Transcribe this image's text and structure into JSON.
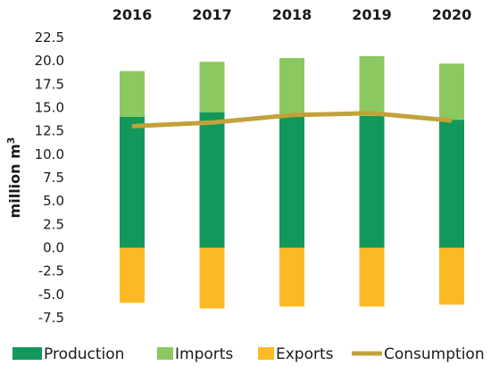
{
  "chart_data": {
    "type": "bar",
    "categories": [
      "2016",
      "2017",
      "2018",
      "2019",
      "2020"
    ],
    "series": [
      {
        "name": "Production",
        "kind": "bar",
        "stack": "positive",
        "color": "#12985a",
        "values": [
          14.0,
          14.5,
          14.2,
          14.1,
          13.7
        ]
      },
      {
        "name": "Imports",
        "kind": "bar",
        "stack": "positive",
        "color": "#8cc860",
        "values": [
          4.9,
          5.4,
          6.1,
          6.4,
          6.0
        ]
      },
      {
        "name": "Exports",
        "kind": "bar",
        "stack": "negative",
        "color": "#fbba25",
        "values": [
          -5.9,
          -6.5,
          -6.3,
          -6.3,
          -6.1
        ]
      },
      {
        "name": "Consumption",
        "kind": "line",
        "color": "#c2a23a",
        "values": [
          13.0,
          13.4,
          14.2,
          14.4,
          13.6
        ]
      }
    ],
    "ylabel_main": "million m",
    "ylabel_sup": "3",
    "ylim": [
      -7.5,
      22.5
    ],
    "yticks": [
      "22.5",
      "20.0",
      "17.5",
      "15.0",
      "12.5",
      "10.0",
      "7.5",
      "5.0",
      "2.5",
      "0.0",
      "-2.5",
      "-5.0",
      "-7.5"
    ],
    "grid": false,
    "category_axis_position": "top",
    "legend_position": "bottom"
  }
}
